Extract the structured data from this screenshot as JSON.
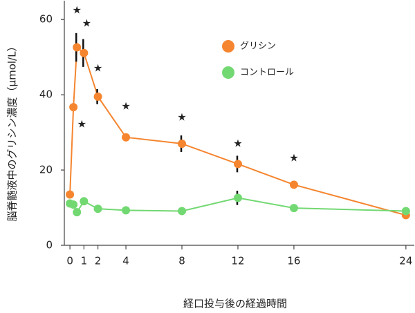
{
  "chart_data": {
    "type": "line",
    "x_label": "経口投与後の経過時間",
    "y_label": "脳脊髄液中のグリシン濃度（μmol/L）",
    "x": [
      0,
      0.25,
      0.5,
      1,
      2,
      4,
      8,
      12,
      16,
      24
    ],
    "series": [
      {
        "name": "グリシン",
        "color": "#f5852f",
        "values": [
          13.5,
          36.7,
          52.6,
          51.1,
          39.5,
          28.7,
          27.0,
          21.6,
          16.1,
          8.0
        ],
        "errors": [
          null,
          null,
          3.8,
          3.7,
          2.0,
          null,
          2.2,
          2.2,
          null,
          null
        ]
      },
      {
        "name": "コントロール",
        "color": "#72d872",
        "values": [
          11.1,
          10.8,
          8.8,
          11.7,
          9.7,
          9.3,
          9.1,
          12.6,
          9.9,
          9.1
        ],
        "errors": [
          null,
          null,
          null,
          null,
          null,
          null,
          null,
          1.9,
          null,
          null
        ]
      }
    ],
    "xlim": [
      -0.4,
      24.6
    ],
    "ylim": [
      0,
      65
    ],
    "xticks": [
      0,
      1,
      2,
      4,
      8,
      12,
      16,
      24
    ],
    "yticks": [
      0,
      20,
      40,
      60
    ],
    "legend": "top-center",
    "annotations": [
      {
        "text": "★",
        "x": 0.5,
        "y": 62.4
      },
      {
        "text": "★",
        "x": 1.2,
        "y": 58.9
      },
      {
        "text": "★",
        "x": 0.85,
        "y": 32.1
      },
      {
        "text": "★",
        "x": 2,
        "y": 47.0
      },
      {
        "text": "★",
        "x": 4,
        "y": 36.9
      },
      {
        "text": "★",
        "x": 8,
        "y": 34.0
      },
      {
        "text": "★",
        "x": 12,
        "y": 27.0
      },
      {
        "text": "★",
        "x": 16,
        "y": 23.1
      }
    ]
  }
}
